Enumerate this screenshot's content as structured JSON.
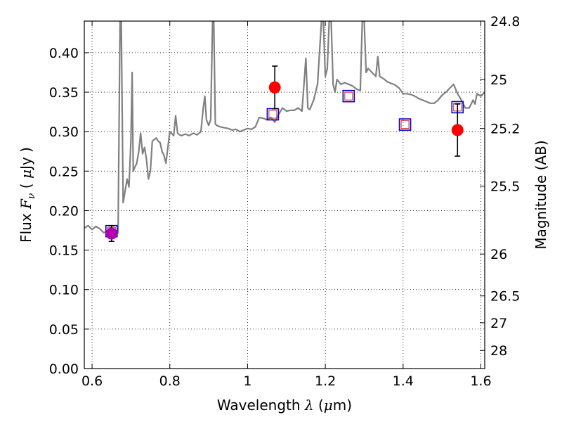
{
  "chart_data": {
    "type": "scatter",
    "xlabel": {
      "prefix": "Wavelength",
      "symbol": "λ",
      "unit_open": " (",
      "unit_mu": "μ",
      "unit_rest": "m)"
    },
    "ylabel": {
      "prefix": "Flux",
      "symbol": "F",
      "subscript": "ν",
      "unit_open": " ( ",
      "unit_mu": "μ",
      "unit_rest": "Jy )"
    },
    "y2label": "Magnitude (AB)",
    "xlim": [
      0.58,
      1.61
    ],
    "ylim": [
      0.0,
      0.44
    ],
    "grid": true,
    "x_ticks": [
      0.6,
      0.8,
      1.0,
      1.2,
      1.4,
      1.6
    ],
    "x_tick_labels": [
      "0.6",
      "0.8",
      "1",
      "1.2",
      "1.4",
      "1.6"
    ],
    "y_ticks": [
      0.0,
      0.05,
      0.1,
      0.15,
      0.2,
      0.25,
      0.3,
      0.35,
      0.4
    ],
    "y_tick_labels": [
      "0.00",
      "0.05",
      "0.10",
      "0.15",
      "0.20",
      "0.25",
      "0.30",
      "0.35",
      "0.40"
    ],
    "y2_ticks": [
      {
        "label": "24.8",
        "flux": 0.44
      },
      {
        "label": "25",
        "flux": 0.366
      },
      {
        "label": "25.2",
        "flux": 0.304
      },
      {
        "label": "25.5",
        "flux": 0.231
      },
      {
        "label": "26",
        "flux": 0.145
      },
      {
        "label": "26.5",
        "flux": 0.092
      },
      {
        "label": "27",
        "flux": 0.058
      },
      {
        "label": "28",
        "flux": 0.023
      }
    ],
    "series": [
      {
        "kind": "model-spectrum",
        "color": "#808080",
        "x": [
          0.58,
          0.59,
          0.6,
          0.61,
          0.62,
          0.63,
          0.64,
          0.65,
          0.66,
          0.667,
          0.672,
          0.675,
          0.68,
          0.685,
          0.69,
          0.695,
          0.7,
          0.703,
          0.706,
          0.71,
          0.715,
          0.72,
          0.725,
          0.73,
          0.735,
          0.74,
          0.745,
          0.75,
          0.755,
          0.76,
          0.765,
          0.77,
          0.775,
          0.78,
          0.785,
          0.79,
          0.8,
          0.81,
          0.815,
          0.82,
          0.825,
          0.83,
          0.84,
          0.85,
          0.86,
          0.87,
          0.88,
          0.886,
          0.89,
          0.894,
          0.9,
          0.905,
          0.91,
          0.913,
          0.917,
          0.92,
          0.93,
          0.94,
          0.95,
          0.96,
          0.97,
          0.98,
          0.99,
          1.0,
          1.01,
          1.02,
          1.03,
          1.04,
          1.05,
          1.06,
          1.07,
          1.08,
          1.09,
          1.1,
          1.11,
          1.12,
          1.13,
          1.14,
          1.145,
          1.15,
          1.155,
          1.16,
          1.17,
          1.18,
          1.19,
          1.195,
          1.2,
          1.205,
          1.21,
          1.215,
          1.22,
          1.225,
          1.23,
          1.24,
          1.25,
          1.26,
          1.27,
          1.28,
          1.29,
          1.295,
          1.3,
          1.305,
          1.31,
          1.32,
          1.33,
          1.335,
          1.34,
          1.35,
          1.36,
          1.37,
          1.38,
          1.39,
          1.4,
          1.41,
          1.42,
          1.43,
          1.44,
          1.45,
          1.46,
          1.47,
          1.48,
          1.49,
          1.5,
          1.51,
          1.52,
          1.53,
          1.54,
          1.55,
          1.56,
          1.57,
          1.58,
          1.585,
          1.59,
          1.6,
          1.61
        ],
        "y": [
          0.178,
          0.181,
          0.176,
          0.18,
          0.177,
          0.172,
          0.174,
          0.17,
          0.168,
          0.172,
          0.44,
          0.44,
          0.21,
          0.225,
          0.24,
          0.23,
          0.29,
          0.375,
          0.25,
          0.255,
          0.26,
          0.275,
          0.298,
          0.272,
          0.28,
          0.265,
          0.24,
          0.25,
          0.288,
          0.29,
          0.292,
          0.288,
          0.286,
          0.275,
          0.27,
          0.26,
          0.3,
          0.295,
          0.32,
          0.298,
          0.296,
          0.295,
          0.297,
          0.295,
          0.298,
          0.296,
          0.3,
          0.33,
          0.345,
          0.315,
          0.308,
          0.315,
          0.44,
          0.44,
          0.31,
          0.308,
          0.306,
          0.305,
          0.304,
          0.302,
          0.303,
          0.3,
          0.302,
          0.304,
          0.303,
          0.306,
          0.318,
          0.317,
          0.315,
          0.318,
          0.312,
          0.322,
          0.33,
          0.326,
          0.327,
          0.327,
          0.33,
          0.326,
          0.36,
          0.393,
          0.33,
          0.328,
          0.34,
          0.36,
          0.44,
          0.44,
          0.37,
          0.38,
          0.44,
          0.44,
          0.36,
          0.35,
          0.366,
          0.36,
          0.362,
          0.36,
          0.358,
          0.354,
          0.352,
          0.44,
          0.44,
          0.375,
          0.38,
          0.375,
          0.37,
          0.395,
          0.37,
          0.367,
          0.363,
          0.361,
          0.359,
          0.355,
          0.348,
          0.348,
          0.347,
          0.345,
          0.342,
          0.34,
          0.338,
          0.336,
          0.336,
          0.34,
          0.346,
          0.35,
          0.355,
          0.36,
          0.348,
          0.34,
          0.33,
          0.33,
          0.34,
          0.335,
          0.348,
          0.345,
          0.35
        ]
      },
      {
        "kind": "model-photometry",
        "marker": "open-square",
        "edge_color": "#0000cc",
        "inner_edge_color": "#e0202d",
        "x": [
          0.65,
          1.065,
          1.26,
          1.405,
          1.54
        ],
        "y": [
          0.174,
          0.322,
          0.345,
          0.309,
          0.331
        ]
      },
      {
        "kind": "observed-photometry",
        "marker": "filled-circle",
        "color": "#ff0000",
        "x": [
          1.07,
          1.54
        ],
        "y": [
          0.356,
          0.302
        ],
        "yerr": [
          0.027,
          0.033
        ]
      },
      {
        "kind": "observed-photometry",
        "marker": "filled-circle",
        "color": "#b000b0",
        "x": [
          0.65
        ],
        "y": [
          0.171
        ],
        "yerr": [
          0.01
        ]
      }
    ]
  }
}
